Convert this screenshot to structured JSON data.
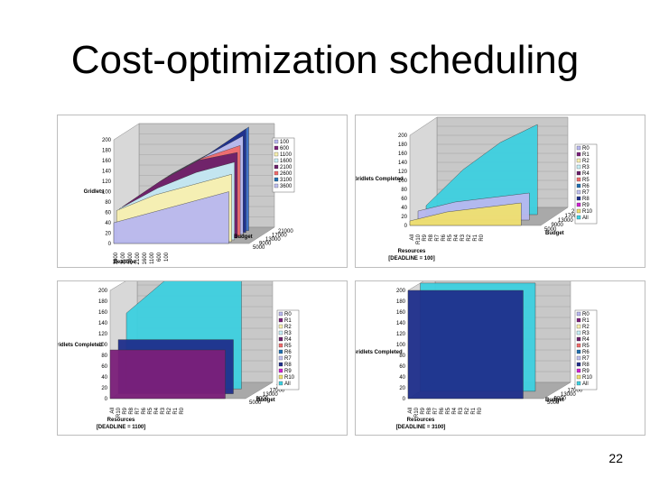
{
  "slide": {
    "title": "Cost-optimization scheduling",
    "page_number": "22"
  },
  "colors": {
    "cyan": "#3dd0e0",
    "navy": "#1f2f8c",
    "purple": "#7b1f7a",
    "lavender": "#b8b8f0",
    "yellow": "#f0e070",
    "wall": "#c8c8c8",
    "floor": "#a9a9a9"
  },
  "chart_data": [
    {
      "type": "area",
      "title": "",
      "ylabel": "Gridlets",
      "xlabel": "Deadline",
      "zlabel": "Budget",
      "ylim": [
        0,
        200
      ],
      "yticks": [
        "200",
        "180",
        "160",
        "140",
        "120",
        "100",
        "80",
        "60",
        "40",
        "20",
        "0"
      ],
      "deadline_ticks": [
        "3600",
        "3100",
        "2600",
        "2100",
        "1600",
        "1100",
        "600",
        "100"
      ],
      "budget_ticks": [
        "21000",
        "17000",
        "13000",
        "9000",
        "5000"
      ],
      "legend": [
        "100",
        "600",
        "1100",
        "1600",
        "2100",
        "2600",
        "3100",
        "3600"
      ],
      "series": [
        {
          "name": "3600",
          "values": [
            60,
            110,
            150,
            200
          ]
        },
        {
          "name": "3100",
          "values": [
            60,
            110,
            150,
            200
          ]
        },
        {
          "name": "2600",
          "values": [
            60,
            110,
            150,
            190
          ]
        },
        {
          "name": "2100",
          "values": [
            60,
            110,
            150,
            175
          ]
        },
        {
          "name": "1600",
          "values": [
            60,
            110,
            150,
            165
          ]
        },
        {
          "name": "1100",
          "values": [
            60,
            100,
            130,
            150
          ]
        },
        {
          "name": "600",
          "values": [
            60,
            90,
            110,
            130
          ]
        },
        {
          "name": "100",
          "values": [
            40,
            60,
            80,
            100
          ]
        }
      ]
    },
    {
      "type": "area",
      "title": "",
      "ylabel": "Gridlets Completed",
      "xlabel": "Resources",
      "xlabel2": "[DEADLINE = 100]",
      "zlabel": "Budget",
      "ylim": [
        0,
        200
      ],
      "yticks": [
        "200",
        "180",
        "160",
        "140",
        "120",
        "100",
        "80",
        "60",
        "40",
        "20",
        "0"
      ],
      "resource_ticks": [
        "All",
        "R10",
        "R9",
        "R8",
        "R7",
        "R6",
        "R5",
        "R4",
        "R3",
        "R2",
        "R1",
        "R0"
      ],
      "budget_ticks": [
        "21000",
        "17000",
        "13000",
        "9000",
        "5000"
      ],
      "legend": [
        "R0",
        "R1",
        "R2",
        "R3",
        "R4",
        "R5",
        "R6",
        "R7",
        "R8",
        "R9",
        "R10",
        "All"
      ],
      "series": [
        {
          "name": "All",
          "values": [
            20,
            100,
            160,
            200
          ]
        },
        {
          "name": "R0",
          "values": [
            20,
            40,
            50,
            60
          ]
        },
        {
          "name": "R1",
          "values": [
            10,
            30,
            40,
            50
          ]
        }
      ]
    },
    {
      "type": "area",
      "title": "",
      "ylabel": "Gridlets Completed",
      "xlabel": "Resources",
      "xlabel2": "[DEADLINE = 1100]",
      "zlabel": "Budget",
      "ylim": [
        0,
        200
      ],
      "yticks": [
        "200",
        "180",
        "160",
        "140",
        "120",
        "100",
        "80",
        "60",
        "40",
        "20",
        "0"
      ],
      "resource_ticks": [
        "All",
        "R10",
        "R9",
        "R8",
        "R7",
        "R6",
        "R5",
        "R4",
        "R3",
        "R2",
        "R1",
        "R0"
      ],
      "budget_ticks": [
        "21000",
        "17000",
        "13000",
        "9000",
        "5000"
      ],
      "legend": [
        "R0",
        "R1",
        "R2",
        "R3",
        "R4",
        "R5",
        "R6",
        "R7",
        "R8",
        "R9",
        "R10",
        "All"
      ],
      "series": [
        {
          "name": "All",
          "values": [
            140,
            200,
            200,
            200
          ]
        },
        {
          "name": "R7",
          "values": [
            100,
            100,
            100,
            100
          ]
        },
        {
          "name": "R8",
          "values": [
            90,
            90,
            90,
            90
          ]
        }
      ]
    },
    {
      "type": "area",
      "title": "",
      "ylabel": "Gridlets Completed",
      "xlabel": "Resources",
      "xlabel2": "[DEADLINE = 3100]",
      "zlabel": "Budget",
      "ylim": [
        0,
        200
      ],
      "yticks": [
        "200",
        "180",
        "160",
        "140",
        "120",
        "100",
        "80",
        "60",
        "40",
        "20",
        "0"
      ],
      "resource_ticks": [
        "All",
        "R10",
        "R9",
        "R8",
        "R7",
        "R6",
        "R5",
        "R4",
        "R3",
        "R2",
        "R1",
        "R0"
      ],
      "budget_ticks": [
        "21000",
        "17000",
        "13000",
        "9000",
        "5000"
      ],
      "legend": [
        "R0",
        "R1",
        "R2",
        "R3",
        "R4",
        "R5",
        "R6",
        "R7",
        "R8",
        "R9",
        "R10",
        "All"
      ],
      "series": [
        {
          "name": "All",
          "values": [
            200,
            200,
            200,
            200
          ]
        },
        {
          "name": "R8",
          "values": [
            200,
            200,
            200,
            200
          ]
        }
      ]
    }
  ]
}
